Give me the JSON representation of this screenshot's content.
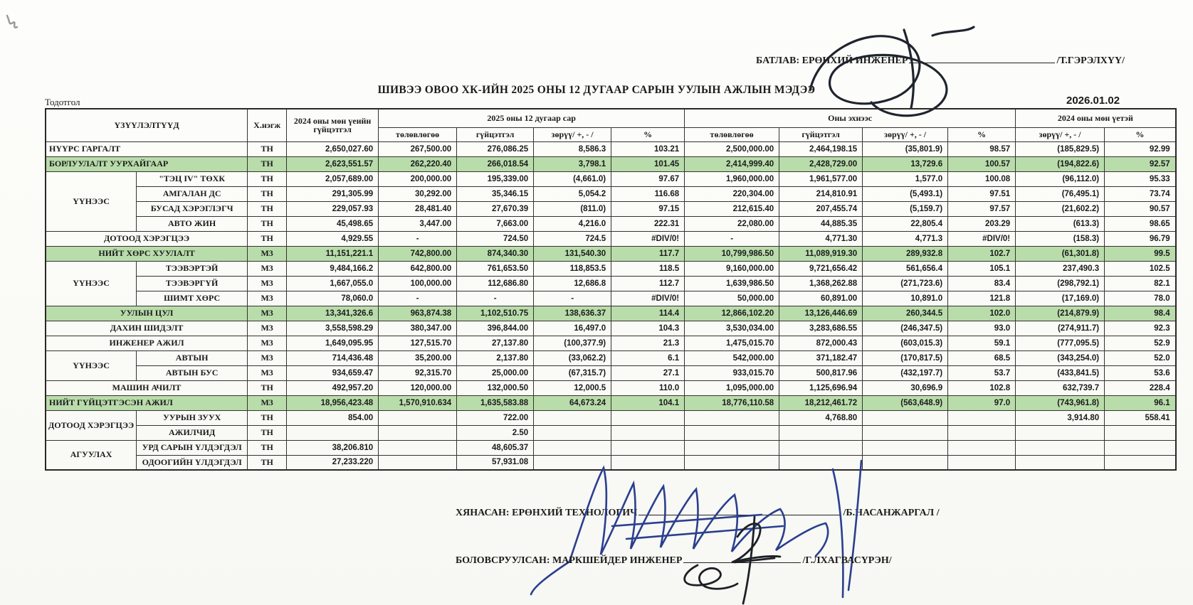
{
  "page": {
    "approve_label": "БАТЛАВ:",
    "approve_title": " ЕРӨНХИЙ ИНЖЕНЕР",
    "approve_name": "/Т.ГЭРЭЛХҮҮ/",
    "title": "ШИВЭЭ ОВОО ХК-ИЙН 2025 ОНЫ 12 ДУГААР САРЫН УУЛЫН АЖЛЫН МЭДЭЭ",
    "date": "2026.01.02",
    "note_label": "Тодотгол",
    "reviewed_label": "ХЯНАСАН:",
    "reviewed_title": " ЕРӨНХИЙ ТЕХНОЛОГИЧ",
    "reviewed_name": "/Б.НАСАНЖАРГАЛ /",
    "prepared_label": "БОЛОВСРУУЛСАН:",
    "prepared_title": " МАРКШЕЙДЕР ИНЖЕНЕР",
    "prepared_name": "/Г.ЛХАГВАСҮРЭН/"
  },
  "colors": {
    "highlight": "#b9dcab",
    "ink_blue": "#2a3f8f",
    "ink_dark": "#1d2026"
  },
  "table": {
    "header": {
      "indicators": "ҮЗҮҮЛЭЛТҮҮД",
      "unit": "Х.нэгж",
      "prev_year": "2024 оны мөн үеийн гүйцэтгэл",
      "month_group": "2025 оны 12 дугаар сар",
      "ytd_group": "Оны эхнээс",
      "prev_group": "2024 оны мөн үетэй",
      "plan": "төлөвлөгөө",
      "actual": "гүйцэтгэл",
      "diff": "зөрүү/ +, - /",
      "pct": "%"
    },
    "rows": [
      {
        "label": "НҮҮРС ГАРГАЛТ",
        "align": "left",
        "unit": "ТН",
        "highlight": false,
        "values": [
          "2,650,027.60",
          "267,500.00",
          "276,086.25",
          "8,586.3",
          "103.21",
          "2,500,000.00",
          "2,464,198.15",
          "(35,801.9)",
          "98.57",
          "(185,829.5)",
          "92.99"
        ]
      },
      {
        "label": "БОРЛУУЛАЛТ УУРХАЙГААР",
        "align": "left",
        "unit": "ТН",
        "highlight": true,
        "values": [
          "2,623,551.57",
          "262,220.40",
          "266,018.54",
          "3,798.1",
          "101.45",
          "2,414,999.40",
          "2,428,729.00",
          "13,729.6",
          "100.57",
          "(194,822.6)",
          "92.57"
        ]
      },
      {
        "group": "ҮҮНЭЭС",
        "groupRows": 4,
        "label": "\"ТЭЦ IV\" ТӨХК",
        "unit": "ТН",
        "highlight": false,
        "values": [
          "2,057,689.00",
          "200,000.00",
          "195,339.00",
          "(4,661.0)",
          "97.67",
          "1,960,000.00",
          "1,961,577.00",
          "1,577.0",
          "100.08",
          "(96,112.0)",
          "95.33"
        ]
      },
      {
        "inGroup": true,
        "label": "АМГАЛАН ДС",
        "unit": "ТН",
        "highlight": false,
        "values": [
          "291,305.99",
          "30,292.00",
          "35,346.15",
          "5,054.2",
          "116.68",
          "220,304.00",
          "214,810.91",
          "(5,493.1)",
          "97.51",
          "(76,495.1)",
          "73.74"
        ]
      },
      {
        "inGroup": true,
        "label": "БУСАД ХЭРЭГЛЭГЧ",
        "unit": "ТН",
        "highlight": false,
        "values": [
          "229,057.93",
          "28,481.40",
          "27,670.39",
          "(811.0)",
          "97.15",
          "212,615.40",
          "207,455.74",
          "(5,159.7)",
          "97.57",
          "(21,602.2)",
          "90.57"
        ]
      },
      {
        "inGroup": true,
        "label": "АВТО ЖИН",
        "unit": "ТН",
        "highlight": false,
        "values": [
          "45,498.65",
          "3,447.00",
          "7,663.00",
          "4,216.0",
          "222.31",
          "22,080.00",
          "44,885.35",
          "22,805.4",
          "203.29",
          "(613.3)",
          "98.65"
        ]
      },
      {
        "label": "ДОТООД ХЭРЭГЦЭЭ",
        "unit": "ТН",
        "highlight": false,
        "values": [
          "4,929.55",
          "-",
          "724.50",
          "724.5",
          "#DIV/0!",
          "-",
          "4,771.30",
          "4,771.3",
          "#DIV/0!",
          "(158.3)",
          "96.79"
        ]
      },
      {
        "label": "НИЙТ ХӨРС ХУУЛАЛТ",
        "unit": "М3",
        "highlight": true,
        "values": [
          "11,151,221.1",
          "742,800.00",
          "874,340.30",
          "131,540.30",
          "117.7",
          "10,799,986.50",
          "11,089,919.30",
          "289,932.8",
          "102.7",
          "(61,301.8)",
          "99.5"
        ]
      },
      {
        "group": "ҮҮНЭЭС",
        "groupRows": 3,
        "label": "ТЭЭВЭРТЭЙ",
        "unit": "М3",
        "highlight": false,
        "values": [
          "9,484,166.2",
          "642,800.00",
          "761,653.50",
          "118,853.5",
          "118.5",
          "9,160,000.00",
          "9,721,656.42",
          "561,656.4",
          "105.1",
          "237,490.3",
          "102.5"
        ]
      },
      {
        "inGroup": true,
        "label": "ТЭЭВЭРГҮЙ",
        "unit": "М3",
        "highlight": false,
        "values": [
          "1,667,055.0",
          "100,000.00",
          "112,686.80",
          "12,686.8",
          "112.7",
          "1,639,986.50",
          "1,368,262.88",
          "(271,723.6)",
          "83.4",
          "(298,792.1)",
          "82.1"
        ]
      },
      {
        "inGroup": true,
        "label": "ШИМТ ХӨРС",
        "unit": "М3",
        "highlight": false,
        "values": [
          "78,060.0",
          "-",
          "-",
          "-",
          "#DIV/0!",
          "50,000.00",
          "60,891.00",
          "10,891.0",
          "121.8",
          "(17,169.0)",
          "78.0"
        ]
      },
      {
        "label": "УУЛЫН ЦУЛ",
        "unit": "М3",
        "highlight": true,
        "values": [
          "13,341,326.6",
          "963,874.38",
          "1,102,510.75",
          "138,636.37",
          "114.4",
          "12,866,102.20",
          "13,126,446.69",
          "260,344.5",
          "102.0",
          "(214,879.9)",
          "98.4"
        ]
      },
      {
        "label": "ДАХИН ШИДЭЛТ",
        "unit": "М3",
        "highlight": false,
        "values": [
          "3,558,598.29",
          "380,347.00",
          "396,844.00",
          "16,497.0",
          "104.3",
          "3,530,034.00",
          "3,283,686.55",
          "(246,347.5)",
          "93.0",
          "(274,911.7)",
          "92.3"
        ]
      },
      {
        "label": "ИНЖЕНЕР АЖИЛ",
        "unit": "М3",
        "highlight": false,
        "values": [
          "1,649,095.95",
          "127,515.70",
          "27,137.80",
          "(100,377.9)",
          "21.3",
          "1,475,015.70",
          "872,000.43",
          "(603,015.3)",
          "59.1",
          "(777,095.5)",
          "52.9"
        ]
      },
      {
        "group": "ҮҮНЭЭС",
        "groupRows": 2,
        "label": "АВТЫН",
        "unit": "М3",
        "highlight": false,
        "values": [
          "714,436.48",
          "35,200.00",
          "2,137.80",
          "(33,062.2)",
          "6.1",
          "542,000.00",
          "371,182.47",
          "(170,817.5)",
          "68.5",
          "(343,254.0)",
          "52.0"
        ]
      },
      {
        "inGroup": true,
        "label": "АВТЫН БУС",
        "unit": "М3",
        "highlight": false,
        "values": [
          "934,659.47",
          "92,315.70",
          "25,000.00",
          "(67,315.7)",
          "27.1",
          "933,015.70",
          "500,817.96",
          "(432,197.7)",
          "53.7",
          "(433,841.5)",
          "53.6"
        ]
      },
      {
        "label": "МАШИН АЧИЛТ",
        "unit": "ТН",
        "highlight": false,
        "values": [
          "492,957.20",
          "120,000.00",
          "132,000.50",
          "12,000.5",
          "110.0",
          "1,095,000.00",
          "1,125,696.94",
          "30,696.9",
          "102.8",
          "632,739.7",
          "228.4"
        ]
      },
      {
        "label": "НИЙТ ГҮЙЦЭТГЭСЭН АЖИЛ",
        "align": "left",
        "unit": "М3",
        "highlight": true,
        "values": [
          "18,956,423.48",
          "1,570,910.634",
          "1,635,583.88",
          "64,673.24",
          "104.1",
          "18,776,110.58",
          "18,212,461.72",
          "(563,648.9)",
          "97.0",
          "(743,961.8)",
          "96.1"
        ]
      },
      {
        "group": "ДОТООД ХЭРЭГЦЭЭ",
        "groupRows": 2,
        "label": "УУРЫН ЗУУХ",
        "unit": "ТН",
        "highlight": false,
        "values": [
          "854.00",
          "",
          "722.00",
          "",
          "",
          "",
          "4,768.80",
          "",
          "",
          "3,914.80",
          "558.41"
        ]
      },
      {
        "inGroup": true,
        "label": "АЖИЛЧИД",
        "unit": "ТН",
        "highlight": false,
        "values": [
          "",
          "",
          "2.50",
          "",
          "",
          "",
          "",
          "",
          "",
          "",
          ""
        ]
      },
      {
        "group": "АГУУЛАХ",
        "groupRows": 2,
        "label": "УРД САРЫН ҮЛДЭГДЭЛ",
        "unit": "ТН",
        "highlight": false,
        "values": [
          "38,206.810",
          "",
          "48,605.37",
          "",
          "",
          "",
          "",
          "",
          "",
          "",
          ""
        ]
      },
      {
        "inGroup": true,
        "label": "ОДООГИЙН ҮЛДЭГДЭЛ",
        "unit": "ТН",
        "highlight": false,
        "values": [
          "27,233.220",
          "",
          "57,931.08",
          "",
          "",
          "",
          "",
          "",
          "",
          "",
          ""
        ]
      }
    ]
  }
}
